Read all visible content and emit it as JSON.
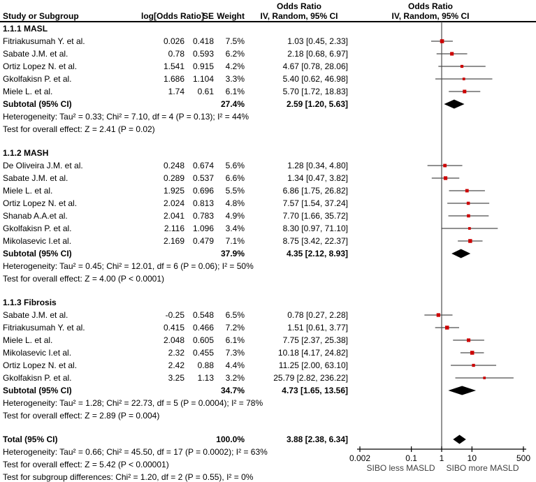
{
  "table_header": {
    "study": "Study or Subgroup",
    "logor": "log[Odds Ratio]",
    "se": "SE",
    "weight": "Weight",
    "effect_line1": "Odds Ratio",
    "effect_line2": "IV, Random, 95% CI"
  },
  "plot_header": {
    "line1": "Odds Ratio",
    "line2": "IV, Random, 95% CI"
  },
  "colors": {
    "marker": "#cc0000",
    "ci_line": "#4d4d4d",
    "null_line": "#4d4d4d",
    "diamond": "#000000",
    "axis": "#000000",
    "axis_label": "#404040"
  },
  "chart_data": {
    "type": "scatter",
    "variant": "forest-plot-meta-analysis",
    "effect_measure": "Odds Ratio",
    "model": "IV, Random, 95% CI",
    "x_scale": "log",
    "xlim": [
      0.002,
      500
    ],
    "x_ticks": [
      0.002,
      0.1,
      1,
      10,
      500
    ],
    "x_tick_labels": [
      "0.002",
      "0.1",
      "1",
      "10",
      "500"
    ],
    "xlabel_left": "SIBO less MASLD",
    "xlabel_right": "SIBO more MASLD",
    "subgroups": [
      {
        "name": "1.1.1 MASL",
        "studies": [
          {
            "study": "Fitriakusumah Y. et al.",
            "log_or": "0.026",
            "se": "0.418",
            "weight": "7.5%",
            "ci_text": "1.03 [0.45, 2.33]",
            "or": 1.03,
            "ci_low": 0.45,
            "ci_high": 2.33
          },
          {
            "study": "Sabate J.M. et al.",
            "log_or": "0.78",
            "se": "0.593",
            "weight": "6.2%",
            "ci_text": "2.18 [0.68, 6.97]",
            "or": 2.18,
            "ci_low": 0.68,
            "ci_high": 6.97
          },
          {
            "study": "Ortiz Lopez N. et al.",
            "log_or": "1.541",
            "se": "0.915",
            "weight": "4.2%",
            "ci_text": "4.67 [0.78, 28.06]",
            "or": 4.67,
            "ci_low": 0.78,
            "ci_high": 28.06
          },
          {
            "study": "Gkolfakisn P. et al.",
            "log_or": "1.686",
            "se": "1.104",
            "weight": "3.3%",
            "ci_text": "5.40 [0.62, 46.98]",
            "or": 5.4,
            "ci_low": 0.62,
            "ci_high": 46.98
          },
          {
            "study": "Miele L. et al.",
            "log_or": "1.74",
            "se": "0.61",
            "weight": "6.1%",
            "ci_text": "5.70 [1.72, 18.83]",
            "or": 5.7,
            "ci_low": 1.72,
            "ci_high": 18.83
          }
        ],
        "subtotal": {
          "label": "Subtotal (95% CI)",
          "weight": "27.4%",
          "ci_text": "2.59 [1.20, 5.63]",
          "or": 2.59,
          "ci_low": 1.2,
          "ci_high": 5.63
        },
        "heterogeneity": "Heterogeneity: Tau² = 0.33; Chi² = 7.10, df = 4 (P = 0.13); I² = 44%",
        "overall_effect": "Test for overall effect: Z = 2.41 (P = 0.02)"
      },
      {
        "name": "1.1.2 MASH",
        "studies": [
          {
            "study": "De Oliveira J.M. et al.",
            "log_or": "0.248",
            "se": "0.674",
            "weight": "5.6%",
            "ci_text": "1.28 [0.34, 4.80]",
            "or": 1.28,
            "ci_low": 0.34,
            "ci_high": 4.8
          },
          {
            "study": "Sabate J.M. et al.",
            "log_or": "0.289",
            "se": "0.537",
            "weight": "6.6%",
            "ci_text": "1.34 [0.47, 3.82]",
            "or": 1.34,
            "ci_low": 0.47,
            "ci_high": 3.82
          },
          {
            "study": "Miele L. et al.",
            "log_or": "1.925",
            "se": "0.696",
            "weight": "5.5%",
            "ci_text": "6.86 [1.75, 26.82]",
            "or": 6.86,
            "ci_low": 1.75,
            "ci_high": 26.82
          },
          {
            "study": "Ortiz Lopez N. et al.",
            "log_or": "2.024",
            "se": "0.813",
            "weight": "4.8%",
            "ci_text": "7.57 [1.54, 37.24]",
            "or": 7.57,
            "ci_low": 1.54,
            "ci_high": 37.24
          },
          {
            "study": "Shanab A.A.et al.",
            "log_or": "2.041",
            "se": "0.783",
            "weight": "4.9%",
            "ci_text": "7.70 [1.66, 35.72]",
            "or": 7.7,
            "ci_low": 1.66,
            "ci_high": 35.72
          },
          {
            "study": "Gkolfakisn P. et al.",
            "log_or": "2.116",
            "se": "1.096",
            "weight": "3.4%",
            "ci_text": "8.30 [0.97, 71.10]",
            "or": 8.3,
            "ci_low": 0.97,
            "ci_high": 71.1
          },
          {
            "study": "Mikolasevic I.et al.",
            "log_or": "2.169",
            "se": "0.479",
            "weight": "7.1%",
            "ci_text": "8.75 [3.42, 22.37]",
            "or": 8.75,
            "ci_low": 3.42,
            "ci_high": 22.37
          }
        ],
        "subtotal": {
          "label": "Subtotal (95% CI)",
          "weight": "37.9%",
          "ci_text": "4.35 [2.12, 8.93]",
          "or": 4.35,
          "ci_low": 2.12,
          "ci_high": 8.93
        },
        "heterogeneity": "Heterogeneity: Tau² = 0.45; Chi² = 12.01, df = 6 (P = 0.06); I² = 50%",
        "overall_effect": "Test for overall effect: Z = 4.00 (P < 0.0001)"
      },
      {
        "name": "1.1.3 Fibrosis",
        "studies": [
          {
            "study": "Sabate J.M. et al.",
            "log_or": "-0.25",
            "se": "0.548",
            "weight": "6.5%",
            "ci_text": "0.78 [0.27, 2.28]",
            "or": 0.78,
            "ci_low": 0.27,
            "ci_high": 2.28
          },
          {
            "study": "Fitriakusumah Y. et al.",
            "log_or": "0.415",
            "se": "0.466",
            "weight": "7.2%",
            "ci_text": "1.51 [0.61, 3.77]",
            "or": 1.51,
            "ci_low": 0.61,
            "ci_high": 3.77
          },
          {
            "study": "Miele L. et al.",
            "log_or": "2.048",
            "se": "0.605",
            "weight": "6.1%",
            "ci_text": "7.75 [2.37, 25.38]",
            "or": 7.75,
            "ci_low": 2.37,
            "ci_high": 25.38
          },
          {
            "study": "Mikolasevic I.et al.",
            "log_or": "2.32",
            "se": "0.455",
            "weight": "7.3%",
            "ci_text": "10.18 [4.17, 24.82]",
            "or": 10.18,
            "ci_low": 4.17,
            "ci_high": 24.82
          },
          {
            "study": "Ortiz Lopez N. et al.",
            "log_or": "2.42",
            "se": "0.88",
            "weight": "4.4%",
            "ci_text": "11.25 [2.00, 63.10]",
            "or": 11.25,
            "ci_low": 2.0,
            "ci_high": 63.1
          },
          {
            "study": "Gkolfakisn P. et al.",
            "log_or": "3.25",
            "se": "1.13",
            "weight": "3.2%",
            "ci_text": "25.79 [2.82, 236.22]",
            "or": 25.79,
            "ci_low": 2.82,
            "ci_high": 236.22
          }
        ],
        "subtotal": {
          "label": "Subtotal (95% CI)",
          "weight": "34.7%",
          "ci_text": "4.73 [1.65, 13.56]",
          "or": 4.73,
          "ci_low": 1.65,
          "ci_high": 13.56
        },
        "heterogeneity": "Heterogeneity: Tau² = 1.28; Chi² = 22.73, df = 5 (P = 0.0004); I² = 78%",
        "overall_effect": "Test for overall effect: Z = 2.89 (P = 0.004)"
      }
    ],
    "total": {
      "label": "Total (95% CI)",
      "weight": "100.0%",
      "ci_text": "3.88 [2.38, 6.34]",
      "or": 3.88,
      "ci_low": 2.38,
      "ci_high": 6.34,
      "heterogeneity": "Heterogeneity: Tau² = 0.66; Chi² = 45.50, df = 17 (P = 0.0002); I² = 63%",
      "overall_effect": "Test for overall effect: Z = 5.42 (P < 0.00001)",
      "subgroup_differences": "Test for subgroup differences: Chi² = 1.20, df = 2 (P = 0.55), I² = 0%"
    }
  }
}
